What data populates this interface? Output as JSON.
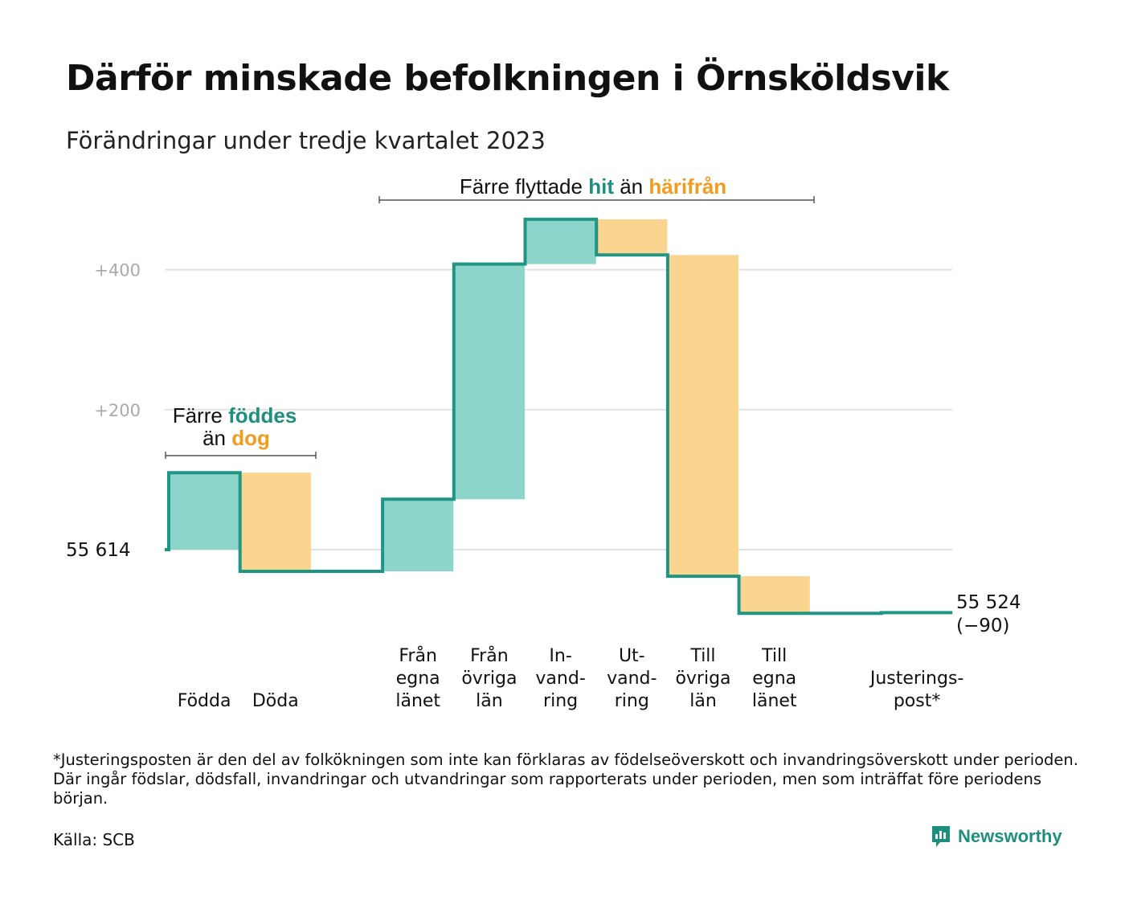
{
  "title": "Därför minskade befolkningen i Örnsköldsvik",
  "subtitle": "Förändringar under tredje kvartalet 2023",
  "footnote": "*Justeringsposten är den del av folkökningen som inte kan förklaras av födelseöverskott och invandringsöverskott under perioden. Där ingår födslar, dödsfall, invandringar och utvandringar som rapporterats under perioden, men som inträffat före periodens början.",
  "source": "Källa: SCB",
  "brand": {
    "name": "Newsworthy",
    "icon": "newsworthy-chart-icon"
  },
  "colors": {
    "inflow": "#8dd4cb",
    "outflow": "#fad58f",
    "line": "#1f9683",
    "grid": "#e2e2e2",
    "accent_green": "#1f8f7d",
    "accent_orange": "#f29c1e"
  },
  "annotations": [
    {
      "text_before": "Färre",
      "highlight_1": "föddes",
      "text_middle": "än",
      "highlight_2": "dog",
      "spans": [
        "Födda",
        "Döda"
      ]
    },
    {
      "text_before": "Färre flyttade",
      "highlight_1": "hit",
      "text_middle": "än",
      "highlight_2": "härifrån",
      "spans": [
        "Från egna länet",
        "Till egna länet"
      ]
    }
  ],
  "chart_data": {
    "type": "waterfall",
    "title": "Därför minskade befolkningen i Örnsköldsvik",
    "subtitle": "Förändringar under tredje kvartalet 2023",
    "start_value": 55614,
    "start_label": "55  614",
    "end_value": 55524,
    "end_label": "55 524",
    "end_change_label": "(−90)",
    "y_ticks": [
      {
        "value": 200,
        "label": "+200"
      },
      {
        "value": 400,
        "label": "+400"
      }
    ],
    "ylim": [
      -110,
      475
    ],
    "grid": true,
    "steps": [
      {
        "category": "Födda",
        "label_lines": [
          "Födda"
        ],
        "value": 110,
        "kind": "inflow",
        "gap_after": 0
      },
      {
        "category": "Döda",
        "label_lines": [
          "Döda"
        ],
        "value": -141,
        "kind": "outflow",
        "gap_after": 1
      },
      {
        "category": "Från egna länet",
        "label_lines": [
          "Från",
          "egna",
          "länet"
        ],
        "value": 103,
        "kind": "inflow",
        "gap_after": 0
      },
      {
        "category": "Från övriga län",
        "label_lines": [
          "Från",
          "övriga",
          "län"
        ],
        "value": 336,
        "kind": "inflow",
        "gap_after": 0
      },
      {
        "category": "Invandring",
        "label_lines": [
          "In-",
          "vand-",
          "ring"
        ],
        "value": 64,
        "kind": "inflow",
        "gap_after": 0
      },
      {
        "category": "Utvandring",
        "label_lines": [
          "Ut-",
          "vand-",
          "ring"
        ],
        "value": -51,
        "kind": "outflow",
        "gap_after": 0
      },
      {
        "category": "Övriga län (till)",
        "label_lines": [
          "Till",
          "övriga",
          "län"
        ],
        "value": -459,
        "kind": "outflow",
        "gap_after": 0
      },
      {
        "category": "Egna länet (till)",
        "label_lines": [
          "Till",
          "egna",
          "länet"
        ],
        "value": -53,
        "kind": "outflow",
        "gap_after": 1
      },
      {
        "category": "Justeringspost",
        "label_lines": [
          "Justerings-",
          "post*"
        ],
        "value": 1,
        "kind": "inflow",
        "gap_after": 0
      }
    ]
  }
}
